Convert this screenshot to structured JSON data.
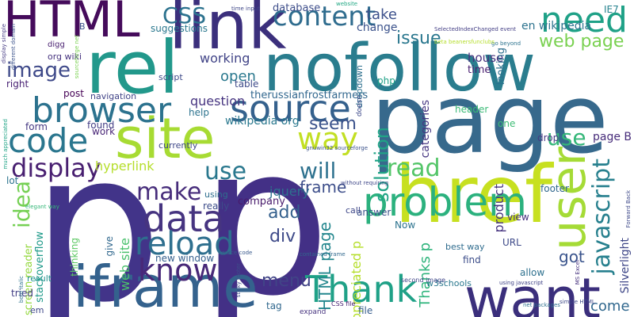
{
  "words": [
    {
      "text": "HTML",
      "color": "#450b5b"
    },
    {
      "text": "link",
      "color": "#3b2f7c"
    },
    {
      "text": "rel",
      "color": "#22988b"
    },
    {
      "text": "nofollow",
      "color": "#2a7d8e"
    },
    {
      "text": "page",
      "color": "#37698c"
    },
    {
      "text": "p",
      "color": "#423489"
    },
    {
      "text": "p",
      "color": "#433086"
    },
    {
      "text": "site",
      "color": "#a7db33"
    },
    {
      "text": "href",
      "color": "#c7e020"
    },
    {
      "text": "iframe",
      "color": "#34628d"
    },
    {
      "text": "want",
      "color": "#3b2f7c"
    },
    {
      "text": "user",
      "color": "#a5db36"
    },
    {
      "text": "problem",
      "color": "#2bb17e"
    },
    {
      "text": "source",
      "color": "#35618d"
    },
    {
      "text": "browser",
      "color": "#2c728e"
    },
    {
      "text": "code",
      "color": "#2a768e"
    },
    {
      "text": "Thank",
      "color": "#1fa187"
    },
    {
      "text": "data",
      "color": "#463480"
    },
    {
      "text": "reload",
      "color": "#2e6f8e"
    },
    {
      "text": "know",
      "color": "#482878"
    },
    {
      "text": "content",
      "color": "#2f6c8e"
    },
    {
      "text": "need",
      "color": "#1fa187"
    },
    {
      "text": "image",
      "color": "#3e4989"
    },
    {
      "text": "display",
      "color": "#481f70"
    },
    {
      "text": "way",
      "color": "#c2df23"
    },
    {
      "text": "make",
      "color": "#472d7b"
    },
    {
      "text": "CSS",
      "color": "#2c728e"
    },
    {
      "text": "javascript",
      "color": "#27808e"
    },
    {
      "text": "read",
      "color": "#53c568"
    },
    {
      "text": "idea",
      "color": "#75d054"
    },
    {
      "text": "use",
      "color": "#35b779"
    },
    {
      "text": "use",
      "color": "#2a788e"
    },
    {
      "text": "will",
      "color": "#2d718e"
    },
    {
      "text": "seem",
      "color": "#3b528b"
    },
    {
      "text": "web page",
      "color": "#7ad151"
    },
    {
      "text": "issue",
      "color": "#2a778e"
    },
    {
      "text": "solution",
      "color": "#20a386"
    },
    {
      "text": "menu",
      "color": "#414487"
    },
    {
      "text": "come",
      "color": "#31688e"
    },
    {
      "text": "got",
      "color": "#3a548c"
    },
    {
      "text": "add",
      "color": "#34608d"
    },
    {
      "text": "div",
      "color": "#3e4a89"
    },
    {
      "text": "frame",
      "color": "#3d4e8a"
    },
    {
      "text": "web site",
      "color": "#4ac16d"
    },
    {
      "text": "HTML page",
      "color": "#24878e"
    },
    {
      "text": "working",
      "color": "#414487"
    },
    {
      "text": "question",
      "color": "#463480"
    },
    {
      "text": "open",
      "color": "#2a788e"
    },
    {
      "text": "take",
      "color": "#3c508b"
    },
    {
      "text": "database",
      "color": "#3d4d8a"
    },
    {
      "text": "en wikipedia",
      "color": "#2c728e"
    },
    {
      "text": "wikipedia org",
      "color": "#2a788e"
    },
    {
      "text": "jquery",
      "color": "#2d718e"
    },
    {
      "text": "Silverlight",
      "color": "#3f4788"
    },
    {
      "text": "categories",
      "color": "#453581"
    },
    {
      "text": "appreciated p",
      "color": "#b5de2b"
    },
    {
      "text": "Thanks p",
      "color": "#2fb47c"
    },
    {
      "text": "page B",
      "color": "#472c7a"
    },
    {
      "text": "product",
      "color": "#46337f"
    },
    {
      "text": "hyperlink",
      "color": "#b5de2b"
    },
    {
      "text": "screen reader",
      "color": "#95d840"
    },
    {
      "text": "stackoverflow",
      "color": "#1f9a8a"
    },
    {
      "text": "therussianfrostfarmers",
      "color": "#31678e"
    },
    {
      "text": "suggestions",
      "color": "#2a788e"
    },
    {
      "text": "house",
      "color": "#46327e"
    },
    {
      "text": "time",
      "color": "#481d6f"
    },
    {
      "text": "looking",
      "color": "#2d708e"
    },
    {
      "text": "change",
      "color": "#3b528b"
    },
    {
      "text": "table",
      "color": "#3e4a89"
    },
    {
      "text": "help",
      "color": "#2c738e"
    },
    {
      "text": "company",
      "color": "#481a6c"
    },
    {
      "text": "work",
      "color": "#482576"
    },
    {
      "text": "found",
      "color": "#433e85"
    },
    {
      "text": "form",
      "color": "#453882"
    },
    {
      "text": "right",
      "color": "#482173"
    },
    {
      "text": "post",
      "color": "#440154"
    },
    {
      "text": "lot",
      "color": "#2c738e"
    },
    {
      "text": "tried",
      "color": "#433e85"
    },
    {
      "text": "result",
      "color": "#20928c"
    },
    {
      "text": "really",
      "color": "#3d4d8a"
    },
    {
      "text": "using",
      "color": "#2e6e8e"
    },
    {
      "text": "give",
      "color": "#31688e"
    },
    {
      "text": "thinking",
      "color": "#5cc863"
    },
    {
      "text": "answer",
      "color": "#3b528b"
    },
    {
      "text": "view",
      "color": "#46307e"
    },
    {
      "text": "allow",
      "color": "#2d708e"
    },
    {
      "text": "find",
      "color": "#3d4e8a"
    },
    {
      "text": "best way",
      "color": "#2f6c8e"
    },
    {
      "text": "URL",
      "color": "#3e4a89"
    },
    {
      "text": "Now",
      "color": "#2c738e"
    },
    {
      "text": "call",
      "color": "#3f4889"
    },
    {
      "text": "one",
      "color": "#3dbc74"
    },
    {
      "text": "drop",
      "color": "#443983"
    },
    {
      "text": "footer",
      "color": "#31688e"
    },
    {
      "text": "header",
      "color": "#3aba76"
    },
    {
      "text": "w3schools",
      "color": "#2a788e"
    },
    {
      "text": "currently",
      "color": "#3f4788"
    },
    {
      "text": "new window",
      "color": "#355f8d"
    },
    {
      "text": "file",
      "color": "#365d8d"
    },
    {
      "text": "tag",
      "color": "#31688e"
    },
    {
      "text": "em",
      "color": "#3f4889"
    },
    {
      "text": "php",
      "color": "#1fa187"
    },
    {
      "text": "script",
      "color": "#3e4a89"
    },
    {
      "text": "navigation",
      "color": "#414487"
    },
    {
      "text": "org wiki",
      "color": "#46337f"
    },
    {
      "text": "B",
      "color": "#3b528b"
    },
    {
      "text": "digg",
      "color": "#481f70"
    },
    {
      "text": "IE7",
      "color": "#26828e"
    },
    {
      "text": "dropdown",
      "color": "#2d708e"
    },
    {
      "text": "doesn",
      "color": "#3e4989"
    },
    {
      "text": "second image",
      "color": "#404688"
    },
    {
      "text": "CSS file",
      "color": "#482173"
    },
    {
      "text": "expand",
      "color": "#46337f"
    },
    {
      "text": "sticky footer",
      "color": "#3d4e8a"
    },
    {
      "text": "display simple",
      "color": "#443a83"
    },
    {
      "text": "time input",
      "color": "#3f4788"
    },
    {
      "text": "website",
      "color": "#22a884"
    },
    {
      "text": "go beyond",
      "color": "#2c738e"
    },
    {
      "text": "contained frame",
      "color": "#31688e"
    },
    {
      "text": "sourceforge net",
      "color": "#7ad151"
    },
    {
      "text": "SelectedIndexChanged event",
      "color": "#433e85"
    },
    {
      "text": "bold italic",
      "color": "#2c728e"
    },
    {
      "text": "different domain",
      "color": "#3b528b"
    },
    {
      "text": "Forward Back",
      "color": "#3e4989"
    },
    {
      "text": "net packages",
      "color": "#2d708e"
    },
    {
      "text": "using javascript",
      "color": "#414487"
    },
    {
      "text": "gnuwin32 sourceforge",
      "color": "#3b528b"
    },
    {
      "text": "without requiring",
      "color": "#3f4788"
    },
    {
      "text": "beta beanersfunclubs",
      "color": "#b5de2b"
    },
    {
      "text": "MS Excel",
      "color": "#46327e"
    },
    {
      "text": "simple HTML",
      "color": "#3e4989"
    },
    {
      "text": "elegant way",
      "color": "#35b779"
    },
    {
      "text": "much appreciated",
      "color": "#20a486"
    },
    {
      "text": "source code",
      "color": "#38588c"
    }
  ]
}
